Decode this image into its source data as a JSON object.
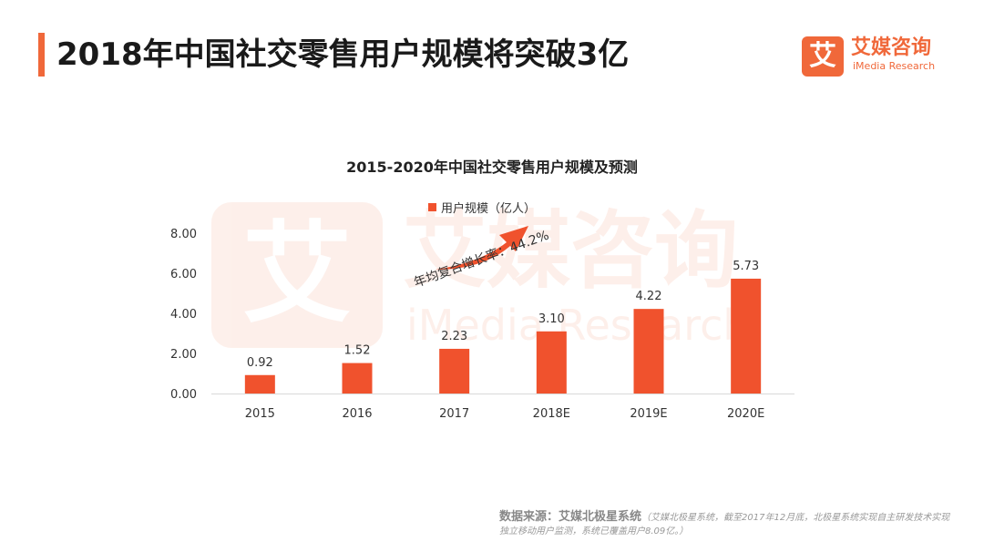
{
  "header": {
    "title": "2018年中国社交零售用户规模将突破3亿"
  },
  "brand": {
    "mark": "艾",
    "name": "艾媒咨询",
    "sub": "iMedia Research",
    "color": "#f0683a"
  },
  "annotation": {
    "cagr_text": "年均复合增长率：44.2%"
  },
  "footer": {
    "source_label": "数据来源：",
    "source_system": "艾媒北极星系统",
    "source_note": "（艾媒北极星系统，截至2017年12月底，北极星系统实现自主研发技术实现独立移动用户监测，系统已覆盖用户8.09亿。）"
  },
  "chart_data": {
    "type": "bar",
    "title": "2015-2020年中国社交零售用户规模及预测",
    "categories": [
      "2015",
      "2016",
      "2017",
      "2018E",
      "2019E",
      "2020E"
    ],
    "series": [
      {
        "name": "用户规模（亿人）",
        "values": [
          0.92,
          1.52,
          2.23,
          3.1,
          4.22,
          5.73
        ],
        "color": "#f0522d"
      }
    ],
    "data_labels": [
      "0.92",
      "1.52",
      "2.23",
      "3.10",
      "4.22",
      "5.73"
    ],
    "ylim": [
      0,
      8
    ],
    "yticks": [
      "0.00",
      "2.00",
      "4.00",
      "6.00",
      "8.00"
    ],
    "grid": false,
    "legend": "top-center"
  }
}
